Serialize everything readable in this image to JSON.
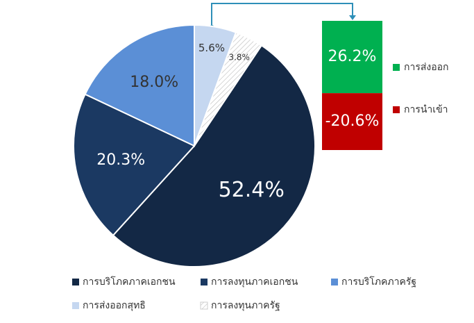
{
  "chart_data": [
    {
      "type": "pie",
      "categories": [
        "การบริโภคภาคเอกชน",
        "การลงทุนภาคเอกชน",
        "การบริโภคภาครัฐ",
        "การส่งออกสุทธิ",
        "การลงทุนภาครัฐ"
      ],
      "values": [
        52.4,
        20.3,
        18.0,
        5.6,
        3.8
      ],
      "value_labels": [
        "52.4%",
        "20.3%",
        "18.0%",
        "5.6%",
        "3.8%"
      ],
      "colors": [
        "#132845",
        "#1b3962",
        "#5b8fd6",
        "#c5d7f0",
        "#ffffff"
      ],
      "hatched": [
        false,
        false,
        false,
        false,
        true
      ]
    },
    {
      "type": "bar",
      "series": [
        {
          "name": "การส่งออก",
          "color": "#00b050",
          "values": [
            26.2
          ],
          "value_labels": [
            "26.2%"
          ]
        },
        {
          "name": "การนำเข้า",
          "color": "#c00000",
          "values": [
            -20.6
          ],
          "value_labels": [
            "-20.6%"
          ]
        }
      ]
    }
  ]
}
